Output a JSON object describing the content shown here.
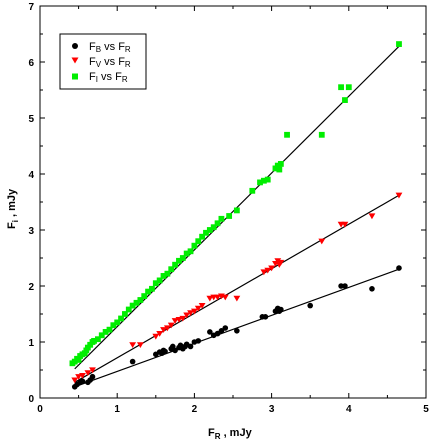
{
  "chart_data": {
    "type": "scatter",
    "xlim": [
      0,
      5
    ],
    "ylim": [
      0,
      7
    ],
    "xticks": [
      "0",
      "1",
      "2",
      "3",
      "4",
      "5"
    ],
    "yticks": [
      "0",
      "1",
      "2",
      "3",
      "4",
      "5",
      "6",
      "7"
    ],
    "xlabel": {
      "main": "F",
      "sub": "R",
      "suffix": " , mJy"
    },
    "ylabel": {
      "main": "F",
      "sub": "i",
      "suffix": " , mJy"
    },
    "grid": false,
    "legend_position": "top-left",
    "series": [
      {
        "legend": {
          "main1": "F",
          "sub1": "B",
          "mid": " vs F",
          "sub2": "R"
        },
        "marker": "circle",
        "color": "#000000",
        "fit": {
          "x": [
            0.45,
            4.65
          ],
          "y": [
            0.2,
            2.3
          ]
        },
        "points": [
          [
            0.45,
            0.2
          ],
          [
            0.48,
            0.24
          ],
          [
            0.52,
            0.28
          ],
          [
            0.55,
            0.3
          ],
          [
            0.62,
            0.28
          ],
          [
            0.65,
            0.32
          ],
          [
            0.68,
            0.38
          ],
          [
            1.2,
            0.65
          ],
          [
            1.5,
            0.78
          ],
          [
            1.55,
            0.82
          ],
          [
            1.58,
            0.8
          ],
          [
            1.6,
            0.85
          ],
          [
            1.62,
            0.83
          ],
          [
            1.7,
            0.88
          ],
          [
            1.72,
            0.92
          ],
          [
            1.75,
            0.85
          ],
          [
            1.8,
            0.9
          ],
          [
            1.82,
            0.94
          ],
          [
            1.85,
            0.88
          ],
          [
            1.88,
            0.92
          ],
          [
            1.9,
            0.96
          ],
          [
            1.95,
            0.92
          ],
          [
            2.0,
            1.0
          ],
          [
            2.05,
            1.02
          ],
          [
            2.2,
            1.18
          ],
          [
            2.25,
            1.12
          ],
          [
            2.3,
            1.15
          ],
          [
            2.35,
            1.2
          ],
          [
            2.4,
            1.25
          ],
          [
            2.55,
            1.2
          ],
          [
            2.88,
            1.45
          ],
          [
            2.92,
            1.45
          ],
          [
            3.05,
            1.55
          ],
          [
            3.08,
            1.6
          ],
          [
            3.1,
            1.55
          ],
          [
            3.12,
            1.58
          ],
          [
            3.5,
            1.65
          ],
          [
            3.9,
            2.0
          ],
          [
            3.95,
            2.0
          ],
          [
            4.3,
            1.95
          ],
          [
            4.65,
            2.32
          ]
        ]
      },
      {
        "legend": {
          "main1": "F",
          "sub1": "V",
          "mid": " vs F",
          "sub2": "R"
        },
        "marker": "triangle-down",
        "color": "#ff0000",
        "fit": {
          "x": [
            0.45,
            4.65
          ],
          "y": [
            0.28,
            3.62
          ]
        },
        "points": [
          [
            0.45,
            0.32
          ],
          [
            0.5,
            0.38
          ],
          [
            0.55,
            0.4
          ],
          [
            0.62,
            0.45
          ],
          [
            0.68,
            0.5
          ],
          [
            1.2,
            0.95
          ],
          [
            1.3,
            0.95
          ],
          [
            1.5,
            1.1
          ],
          [
            1.55,
            1.15
          ],
          [
            1.6,
            1.22
          ],
          [
            1.65,
            1.25
          ],
          [
            1.7,
            1.3
          ],
          [
            1.75,
            1.38
          ],
          [
            1.8,
            1.4
          ],
          [
            1.85,
            1.42
          ],
          [
            1.9,
            1.48
          ],
          [
            1.95,
            1.52
          ],
          [
            2.0,
            1.55
          ],
          [
            2.05,
            1.6
          ],
          [
            2.1,
            1.65
          ],
          [
            2.2,
            1.78
          ],
          [
            2.25,
            1.8
          ],
          [
            2.3,
            1.8
          ],
          [
            2.35,
            1.82
          ],
          [
            2.4,
            1.8
          ],
          [
            2.55,
            1.78
          ],
          [
            2.9,
            2.25
          ],
          [
            2.95,
            2.28
          ],
          [
            3.0,
            2.32
          ],
          [
            3.05,
            2.4
          ],
          [
            3.08,
            2.45
          ],
          [
            3.1,
            2.38
          ],
          [
            3.12,
            2.42
          ],
          [
            3.65,
            2.8
          ],
          [
            3.9,
            3.1
          ],
          [
            3.95,
            3.1
          ],
          [
            4.3,
            3.25
          ],
          [
            4.65,
            3.62
          ]
        ]
      },
      {
        "legend": {
          "main1": "F",
          "sub1": "I",
          "mid": " vs F",
          "sub2": "R"
        },
        "marker": "square",
        "color": "#00ee00",
        "fit": {
          "x": [
            0.45,
            4.65
          ],
          "y": [
            0.52,
            6.28
          ]
        },
        "points": [
          [
            0.42,
            0.62
          ],
          [
            0.45,
            0.65
          ],
          [
            0.48,
            0.7
          ],
          [
            0.5,
            0.68
          ],
          [
            0.52,
            0.75
          ],
          [
            0.55,
            0.78
          ],
          [
            0.58,
            0.8
          ],
          [
            0.6,
            0.85
          ],
          [
            0.62,
            0.9
          ],
          [
            0.65,
            0.95
          ],
          [
            0.68,
            1.0
          ],
          [
            0.7,
            1.02
          ],
          [
            0.75,
            1.05
          ],
          [
            0.8,
            1.12
          ],
          [
            0.85,
            1.18
          ],
          [
            0.9,
            1.22
          ],
          [
            0.95,
            1.3
          ],
          [
            1.0,
            1.35
          ],
          [
            1.05,
            1.42
          ],
          [
            1.1,
            1.5
          ],
          [
            1.15,
            1.58
          ],
          [
            1.2,
            1.65
          ],
          [
            1.25,
            1.7
          ],
          [
            1.3,
            1.75
          ],
          [
            1.35,
            1.82
          ],
          [
            1.4,
            1.9
          ],
          [
            1.45,
            1.95
          ],
          [
            1.5,
            2.05
          ],
          [
            1.55,
            2.1
          ],
          [
            1.6,
            2.18
          ],
          [
            1.65,
            2.22
          ],
          [
            1.7,
            2.3
          ],
          [
            1.75,
            2.38
          ],
          [
            1.8,
            2.45
          ],
          [
            1.85,
            2.5
          ],
          [
            1.9,
            2.58
          ],
          [
            1.95,
            2.62
          ],
          [
            2.0,
            2.72
          ],
          [
            2.05,
            2.8
          ],
          [
            2.1,
            2.88
          ],
          [
            2.15,
            2.95
          ],
          [
            2.2,
            3.0
          ],
          [
            2.25,
            3.05
          ],
          [
            2.3,
            3.12
          ],
          [
            2.35,
            3.2
          ],
          [
            2.45,
            3.25
          ],
          [
            2.55,
            3.35
          ],
          [
            2.75,
            3.7
          ],
          [
            2.85,
            3.85
          ],
          [
            2.9,
            3.88
          ],
          [
            2.95,
            3.9
          ],
          [
            3.05,
            4.1
          ],
          [
            3.08,
            4.15
          ],
          [
            3.1,
            4.08
          ],
          [
            3.12,
            4.18
          ],
          [
            3.2,
            4.7
          ],
          [
            3.65,
            4.7
          ],
          [
            3.9,
            5.55
          ],
          [
            3.95,
            5.32
          ],
          [
            4.0,
            5.55
          ],
          [
            4.65,
            6.32
          ]
        ]
      }
    ]
  }
}
